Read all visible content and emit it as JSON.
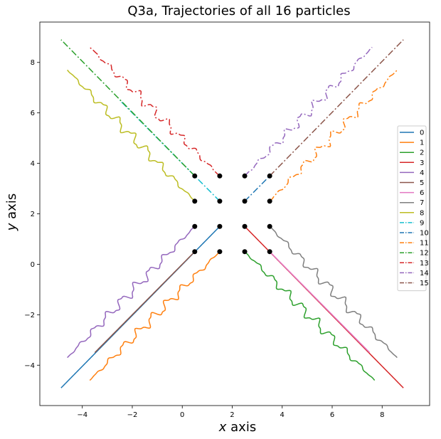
{
  "chart_data": {
    "type": "line",
    "title": "Q3a, Trajectories of all 16 particles",
    "xlabel_var": "x",
    "xlabel_rest": " axis",
    "ylabel_var": "y",
    "ylabel_rest": " axis",
    "xlim": [
      -5.7,
      9.9
    ],
    "ylim": [
      -5.6,
      9.6
    ],
    "xticks": [
      -4,
      -2,
      0,
      2,
      4,
      6,
      8
    ],
    "xtick_labels": [
      "−4",
      "−2",
      "0",
      "2",
      "4",
      "6",
      "8"
    ],
    "yticks": [
      -4,
      -2,
      0,
      2,
      4,
      6,
      8
    ],
    "ytick_labels": [
      "−4",
      "−2",
      "0",
      "2",
      "4",
      "6",
      "8"
    ],
    "grid": false,
    "legend_position": "center-right",
    "start_points": [
      [
        0.5,
        3.5
      ],
      [
        1.5,
        3.5
      ],
      [
        2.5,
        3.5
      ],
      [
        3.5,
        3.5
      ],
      [
        0.5,
        2.5
      ],
      [
        1.5,
        2.5
      ],
      [
        2.5,
        2.5
      ],
      [
        3.5,
        2.5
      ],
      [
        0.5,
        1.5
      ],
      [
        1.5,
        1.5
      ],
      [
        2.5,
        1.5
      ],
      [
        3.5,
        1.5
      ],
      [
        0.5,
        0.5
      ],
      [
        1.5,
        0.5
      ],
      [
        2.5,
        0.5
      ],
      [
        3.5,
        0.5
      ]
    ],
    "series": [
      {
        "name": "0",
        "color": "#1f77b4",
        "style": "solid",
        "wavy": false,
        "start": [
          1.5,
          1.5
        ],
        "end": [
          -4.85,
          -4.9
        ]
      },
      {
        "name": "1",
        "color": "#ff7f0e",
        "style": "solid",
        "wavy": true,
        "start": [
          1.5,
          0.5
        ],
        "end": [
          -3.7,
          -4.6
        ]
      },
      {
        "name": "2",
        "color": "#2ca02c",
        "style": "solid",
        "wavy": true,
        "start": [
          2.5,
          0.5
        ],
        "end": [
          7.7,
          -4.6
        ]
      },
      {
        "name": "3",
        "color": "#d62728",
        "style": "solid",
        "wavy": false,
        "start": [
          2.5,
          1.5
        ],
        "end": [
          8.85,
          -4.9
        ]
      },
      {
        "name": "4",
        "color": "#9467bd",
        "style": "solid",
        "wavy": true,
        "start": [
          0.5,
          1.5
        ],
        "end": [
          -4.6,
          -3.7
        ]
      },
      {
        "name": "5",
        "color": "#8c564b",
        "style": "solid",
        "wavy": false,
        "start": [
          0.5,
          0.5
        ],
        "end": [
          -3.5,
          -3.5
        ]
      },
      {
        "name": "6",
        "color": "#e377c2",
        "style": "solid",
        "wavy": false,
        "start": [
          3.5,
          0.5
        ],
        "end": [
          7.5,
          -3.5
        ]
      },
      {
        "name": "7",
        "color": "#7f7f7f",
        "style": "solid",
        "wavy": true,
        "start": [
          3.5,
          1.5
        ],
        "end": [
          8.6,
          -3.7
        ]
      },
      {
        "name": "8",
        "color": "#bcbd22",
        "style": "solid",
        "wavy": true,
        "start": [
          0.5,
          2.5
        ],
        "end": [
          -4.6,
          7.7
        ]
      },
      {
        "name": "9",
        "color": "#17becf",
        "style": "dashdot",
        "wavy": false,
        "start": [
          1.5,
          2.5
        ],
        "end": [
          -2.5,
          6.5
        ]
      },
      {
        "name": "10",
        "color": "#1f77b4",
        "style": "dashdot",
        "wavy": false,
        "start": [
          2.5,
          2.5
        ],
        "end": [
          3.5,
          3.5
        ]
      },
      {
        "name": "11",
        "color": "#ff7f0e",
        "style": "dashdot",
        "wavy": true,
        "start": [
          3.5,
          2.5
        ],
        "end": [
          8.6,
          7.7
        ]
      },
      {
        "name": "12",
        "color": "#2ca02c",
        "style": "dashdot",
        "wavy": false,
        "start": [
          0.5,
          3.5
        ],
        "end": [
          -4.85,
          8.9
        ]
      },
      {
        "name": "13",
        "color": "#d62728",
        "style": "dashdot",
        "wavy": true,
        "start": [
          1.5,
          3.5
        ],
        "end": [
          -3.7,
          8.6
        ]
      },
      {
        "name": "14",
        "color": "#9467bd",
        "style": "dashdot",
        "wavy": true,
        "start": [
          2.5,
          3.5
        ],
        "end": [
          7.6,
          8.6
        ]
      },
      {
        "name": "15",
        "color": "#8c564b",
        "style": "dashdot",
        "wavy": false,
        "start": [
          3.5,
          3.5
        ],
        "end": [
          8.85,
          8.9
        ]
      }
    ]
  }
}
